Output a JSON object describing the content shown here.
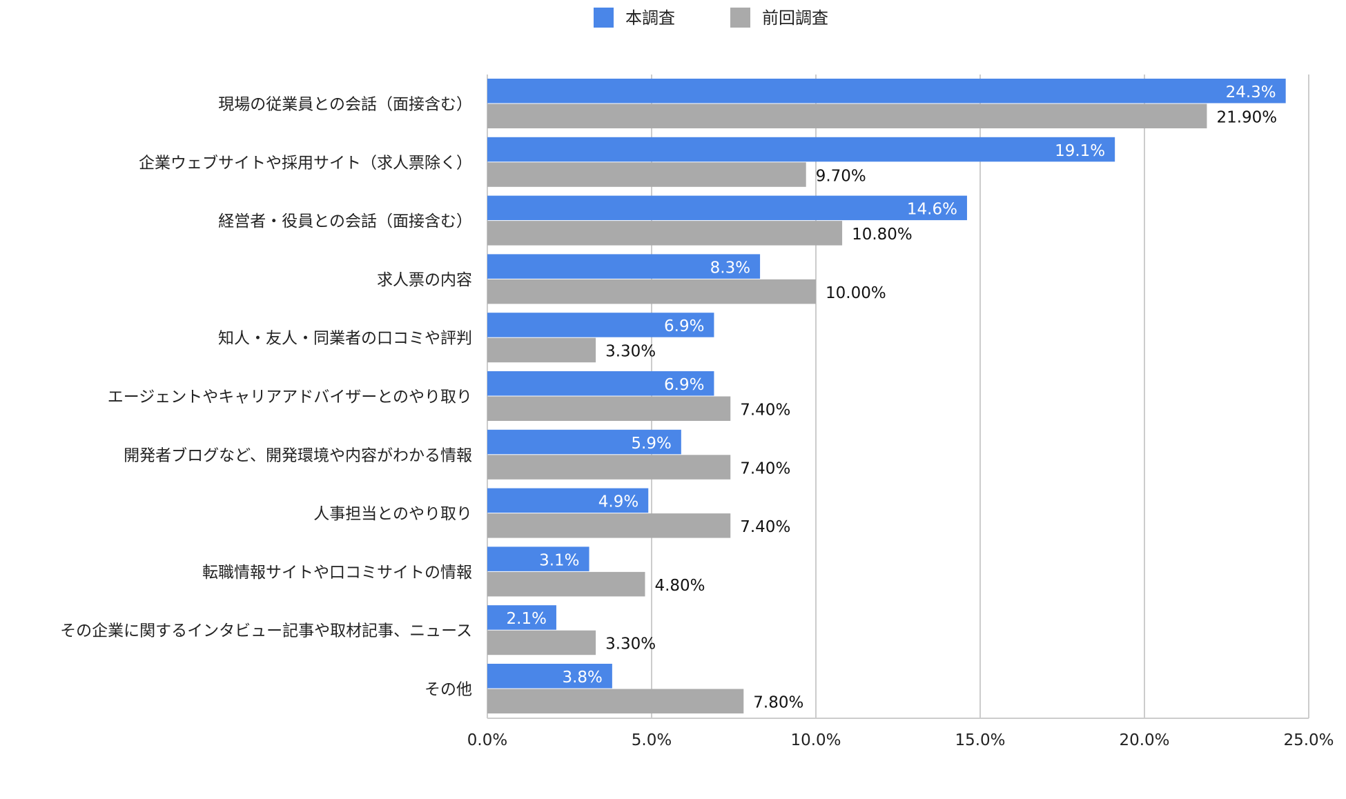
{
  "chart_data": {
    "type": "bar",
    "orientation": "horizontal",
    "title": "",
    "xlabel": "",
    "ylabel": "",
    "xlim": [
      0,
      25
    ],
    "x_ticks": [
      0,
      5,
      10,
      15,
      20,
      25
    ],
    "x_tick_labels": [
      "0.0%",
      "5.0%",
      "10.0%",
      "15.0%",
      "20.0%",
      "25.0%"
    ],
    "grid": true,
    "legend_position": "top-center",
    "categories": [
      "現場の従業員との会話（面接含む）",
      "企業ウェブサイトや採用サイト（求人票除く）",
      "経営者・役員との会話（面接含む）",
      "求人票の内容",
      "知人・友人・同業者の口コミや評判",
      "エージェントやキャリアアドバイザーとのやり取り",
      "開発者ブログなど、開発環境や内容がわかる情報",
      "人事担当とのやり取り",
      "転職情報サイトや口コミサイトの情報",
      "その企業に関するインタビュー記事や取材記事、ニュース",
      "その他"
    ],
    "series": [
      {
        "name": "本調査",
        "color": "#4a86e8",
        "values": [
          24.3,
          19.1,
          14.6,
          8.3,
          6.9,
          6.9,
          5.9,
          4.9,
          3.1,
          2.1,
          3.8
        ],
        "labels": [
          "24.3%",
          "19.1%",
          "14.6%",
          "8.3%",
          "6.9%",
          "6.9%",
          "5.9%",
          "4.9%",
          "3.1%",
          "2.1%",
          "3.8%"
        ]
      },
      {
        "name": "前回調査",
        "color": "#aaaaaa",
        "values": [
          21.9,
          9.7,
          10.8,
          10.0,
          3.3,
          7.4,
          7.4,
          7.4,
          4.8,
          3.3,
          7.8
        ],
        "labels": [
          "21.90%",
          "9.70%",
          "10.80%",
          "10.00%",
          "3.30%",
          "7.40%",
          "7.40%",
          "7.40%",
          "4.80%",
          "3.30%",
          "7.80%"
        ]
      }
    ]
  }
}
